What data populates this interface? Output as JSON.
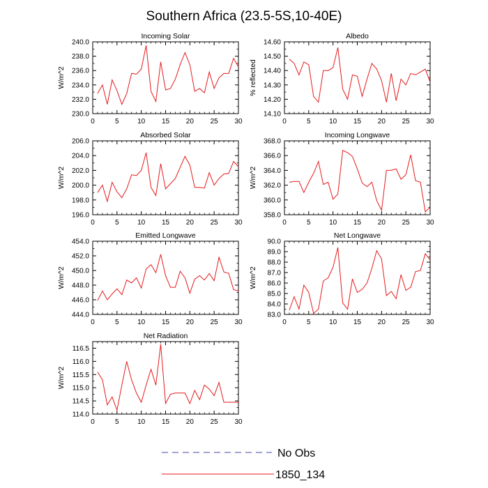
{
  "figure": {
    "title": "Southern Africa (23.5-5S,10-40E)"
  },
  "legend": {
    "items": [
      {
        "label": "No Obs",
        "color": "#4444aa",
        "style": "dashed"
      },
      {
        "label": "1850_134",
        "color": "#e41a1c",
        "style": "solid"
      }
    ]
  },
  "chart_data": [
    {
      "type": "line",
      "title": "Incoming Solar",
      "xlabel": "",
      "ylabel": "W/m^2",
      "xlim": [
        0,
        30
      ],
      "ylim": [
        230,
        240
      ],
      "xticks": [
        0,
        5,
        10,
        15,
        20,
        25,
        30
      ],
      "yticks": [
        230,
        232,
        234,
        236,
        238,
        240
      ],
      "ytick_labels": [
        "230.0",
        "232.0",
        "234.0",
        "236.0",
        "238.0",
        "240.0"
      ],
      "x": [
        1,
        2,
        3,
        4,
        5,
        6,
        7,
        8,
        9,
        10,
        11,
        12,
        13,
        14,
        15,
        16,
        17,
        18,
        19,
        20,
        21,
        22,
        23,
        24,
        25,
        26,
        27,
        28,
        29,
        30
      ],
      "series": [
        {
          "name": "1850_134",
          "color": "#e41a1c",
          "values": [
            232.8,
            234.0,
            231.3,
            234.7,
            233.2,
            231.3,
            232.8,
            235.6,
            235.5,
            236.2,
            239.5,
            233.1,
            231.7,
            237.2,
            233.3,
            233.5,
            234.8,
            236.8,
            238.5,
            236.8,
            233.1,
            233.5,
            232.9,
            235.8,
            233.5,
            235.0,
            235.6,
            235.6,
            237.7,
            236.5
          ]
        }
      ]
    },
    {
      "type": "line",
      "title": "Albedo",
      "xlabel": "",
      "ylabel": "% reflected",
      "xlim": [
        0,
        30
      ],
      "ylim": [
        14.1,
        14.6
      ],
      "xticks": [
        0,
        5,
        10,
        15,
        20,
        25,
        30
      ],
      "yticks": [
        14.1,
        14.2,
        14.3,
        14.4,
        14.5,
        14.6
      ],
      "ytick_labels": [
        "14.10",
        "14.20",
        "14.30",
        "14.40",
        "14.50",
        "14.60"
      ],
      "x": [
        1,
        2,
        3,
        4,
        5,
        6,
        7,
        8,
        9,
        10,
        11,
        12,
        13,
        14,
        15,
        16,
        17,
        18,
        19,
        20,
        21,
        22,
        23,
        24,
        25,
        26,
        27,
        28,
        29,
        30
      ],
      "series": [
        {
          "name": "1850_134",
          "color": "#e41a1c",
          "values": [
            14.48,
            14.45,
            14.37,
            14.46,
            14.44,
            14.22,
            14.18,
            14.4,
            14.4,
            14.42,
            14.56,
            14.27,
            14.2,
            14.37,
            14.36,
            14.22,
            14.34,
            14.45,
            14.41,
            14.33,
            14.18,
            14.38,
            14.19,
            14.34,
            14.3,
            14.38,
            14.37,
            14.39,
            14.41,
            14.32
          ]
        }
      ]
    },
    {
      "type": "line",
      "title": "Absorbed Solar",
      "xlabel": "",
      "ylabel": "W/m^2",
      "xlim": [
        0,
        30
      ],
      "ylim": [
        196,
        206
      ],
      "xticks": [
        0,
        5,
        10,
        15,
        20,
        25,
        30
      ],
      "yticks": [
        196,
        198,
        200,
        202,
        204,
        206
      ],
      "ytick_labels": [
        "196.0",
        "198.0",
        "200.0",
        "202.0",
        "204.0",
        "206.0"
      ],
      "x": [
        1,
        2,
        3,
        4,
        5,
        6,
        7,
        8,
        9,
        10,
        11,
        12,
        13,
        14,
        15,
        16,
        17,
        18,
        19,
        20,
        21,
        22,
        23,
        24,
        25,
        26,
        27,
        28,
        29,
        30
      ],
      "series": [
        {
          "name": "1850_134",
          "color": "#e41a1c",
          "values": [
            199.0,
            200.0,
            197.8,
            200.4,
            199.1,
            198.3,
            199.5,
            201.4,
            201.3,
            202.0,
            204.4,
            199.7,
            198.6,
            202.9,
            199.5,
            200.2,
            200.9,
            202.4,
            203.9,
            202.7,
            199.7,
            199.7,
            199.6,
            201.7,
            200.0,
            200.9,
            201.5,
            201.6,
            203.2,
            202.5
          ]
        }
      ]
    },
    {
      "type": "line",
      "title": "Incoming Longwave",
      "xlabel": "",
      "ylabel": "W/m^2",
      "xlim": [
        0,
        30
      ],
      "ylim": [
        358,
        368
      ],
      "xticks": [
        0,
        5,
        10,
        15,
        20,
        25,
        30
      ],
      "yticks": [
        358,
        360,
        362,
        364,
        366,
        368
      ],
      "ytick_labels": [
        "358.0",
        "360.0",
        "362.0",
        "364.0",
        "366.0",
        "368.0"
      ],
      "x": [
        1,
        2,
        3,
        4,
        5,
        6,
        7,
        8,
        9,
        10,
        11,
        12,
        13,
        14,
        15,
        16,
        17,
        18,
        19,
        20,
        21,
        22,
        23,
        24,
        25,
        26,
        27,
        28,
        29,
        30
      ],
      "series": [
        {
          "name": "1850_134",
          "color": "#e41a1c",
          "values": [
            362.4,
            362.5,
            362.5,
            361.0,
            362.4,
            363.6,
            365.2,
            362.1,
            362.4,
            360.1,
            360.8,
            366.7,
            366.4,
            365.9,
            364.2,
            362.3,
            361.8,
            362.4,
            359.9,
            358.6,
            364.0,
            364.0,
            364.2,
            362.8,
            363.4,
            366.1,
            362.6,
            362.4,
            358.4,
            359.0
          ]
        }
      ]
    },
    {
      "type": "line",
      "title": "Emitted Longwave",
      "xlabel": "",
      "ylabel": "W/m^2",
      "xlim": [
        0,
        30
      ],
      "ylim": [
        444,
        454
      ],
      "xticks": [
        0,
        5,
        10,
        15,
        20,
        25,
        30
      ],
      "yticks": [
        444,
        446,
        448,
        450,
        452,
        454
      ],
      "ytick_labels": [
        "444.0",
        "446.0",
        "448.0",
        "450.0",
        "452.0",
        "454.0"
      ],
      "x": [
        1,
        2,
        3,
        4,
        5,
        6,
        7,
        8,
        9,
        10,
        11,
        12,
        13,
        14,
        15,
        16,
        17,
        18,
        19,
        20,
        21,
        22,
        23,
        24,
        25,
        26,
        27,
        28,
        29,
        30
      ],
      "series": [
        {
          "name": "1850_134",
          "color": "#e41a1c",
          "values": [
            445.9,
            447.2,
            446.0,
            446.8,
            447.5,
            446.7,
            448.7,
            448.3,
            449.0,
            447.6,
            450.2,
            450.8,
            449.7,
            452.2,
            449.3,
            447.7,
            447.7,
            449.9,
            449.0,
            446.9,
            448.8,
            449.3,
            448.7,
            449.6,
            448.6,
            451.8,
            449.8,
            449.6,
            447.4,
            447.2
          ]
        }
      ]
    },
    {
      "type": "line",
      "title": "Net Longwave",
      "xlabel": "",
      "ylabel": "W/m^2",
      "xlim": [
        0,
        30
      ],
      "ylim": [
        83,
        90
      ],
      "xticks": [
        0,
        5,
        10,
        15,
        20,
        25,
        30
      ],
      "yticks": [
        83,
        84,
        85,
        86,
        87,
        88,
        89,
        90
      ],
      "ytick_labels": [
        "83.0",
        "84.0",
        "85.0",
        "86.0",
        "87.0",
        "88.0",
        "89.0",
        "90.0"
      ],
      "x": [
        1,
        2,
        3,
        4,
        5,
        6,
        7,
        8,
        9,
        10,
        11,
        12,
        13,
        14,
        15,
        16,
        17,
        18,
        19,
        20,
        21,
        22,
        23,
        24,
        25,
        26,
        27,
        28,
        29,
        30
      ],
      "series": [
        {
          "name": "1850_134",
          "color": "#e41a1c",
          "values": [
            83.4,
            84.7,
            83.5,
            85.8,
            85.1,
            83.1,
            83.5,
            86.2,
            86.5,
            87.5,
            89.4,
            84.1,
            83.5,
            86.4,
            85.1,
            85.4,
            86.0,
            87.4,
            89.1,
            88.3,
            84.8,
            85.2,
            84.5,
            86.8,
            85.3,
            85.6,
            87.1,
            87.2,
            88.8,
            88.2
          ]
        }
      ]
    },
    {
      "type": "line",
      "title": "Net Radiation",
      "xlabel": "",
      "ylabel": "W/m^2",
      "xlim": [
        0,
        30
      ],
      "ylim": [
        114,
        116.75
      ],
      "xticks": [
        0,
        5,
        10,
        15,
        20,
        25,
        30
      ],
      "yticks": [
        114.0,
        114.5,
        115.0,
        115.5,
        116.0,
        116.5
      ],
      "ytick_labels": [
        "114.0",
        "114.5",
        "115.0",
        "115.5",
        "116.0",
        "116.5"
      ],
      "x": [
        1,
        2,
        3,
        4,
        5,
        6,
        7,
        8,
        9,
        10,
        11,
        12,
        13,
        14,
        15,
        16,
        17,
        18,
        19,
        20,
        21,
        22,
        23,
        24,
        25,
        26,
        27,
        28,
        29,
        30
      ],
      "series": [
        {
          "name": "1850_134",
          "color": "#e41a1c",
          "values": [
            115.6,
            115.3,
            114.35,
            114.65,
            114.15,
            115.1,
            116.0,
            115.3,
            114.8,
            114.45,
            115.1,
            115.7,
            115.1,
            116.65,
            114.4,
            114.75,
            114.8,
            114.8,
            114.8,
            114.4,
            114.9,
            114.55,
            115.1,
            114.95,
            114.7,
            115.2,
            114.45,
            114.45,
            114.45,
            114.45
          ]
        }
      ]
    }
  ]
}
